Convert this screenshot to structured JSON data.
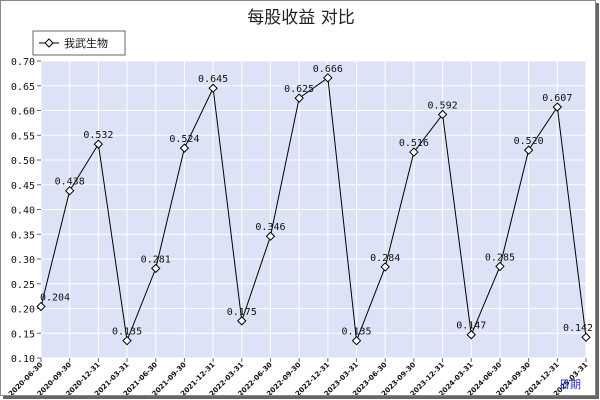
{
  "chart_data": {
    "type": "line",
    "title": "每股收益  对比",
    "x_unit_label": "日期",
    "categories": [
      "2020-06-30",
      "2020-09-30",
      "2020-12-31",
      "2021-03-31",
      "2021-06-30",
      "2021-09-30",
      "2021-12-31",
      "2022-03-31",
      "2022-06-30",
      "2022-09-30",
      "2022-12-31",
      "2023-03-31",
      "2023-06-30",
      "2023-09-30",
      "2023-12-31",
      "2024-03-31",
      "2024-06-30",
      "2024-09-30",
      "2024-12-31",
      "2025-03-31"
    ],
    "series": [
      {
        "name": "我武生物",
        "values": [
          0.204,
          0.438,
          0.532,
          0.135,
          0.281,
          0.524,
          0.645,
          0.175,
          0.346,
          0.625,
          0.666,
          0.135,
          0.284,
          0.516,
          0.592,
          0.147,
          0.285,
          0.52,
          0.607,
          0.142
        ]
      }
    ],
    "value_labels": [
      "0.204",
      "0.438",
      "0.532",
      "0.135",
      "0.281",
      "0.524",
      "0.645",
      "0.175",
      "0.346",
      "0.625",
      "0.666",
      "0.135",
      "0.284",
      "0.516",
      "0.592",
      "0.147",
      "0.285",
      "0.520",
      "0.607",
      "0.142"
    ],
    "yticks": [
      "0.10",
      "0.15",
      "0.20",
      "0.25",
      "0.30",
      "0.35",
      "0.40",
      "0.45",
      "0.50",
      "0.55",
      "0.60",
      "0.65",
      "0.70"
    ],
    "ylim": [
      0.1,
      0.7
    ],
    "grid": true,
    "legend_position": "top-left",
    "colors": {
      "plot_bg": "#dde3f7",
      "grid": "#ffffff",
      "line": "#000000",
      "marker_fill": "#ffffff"
    }
  }
}
